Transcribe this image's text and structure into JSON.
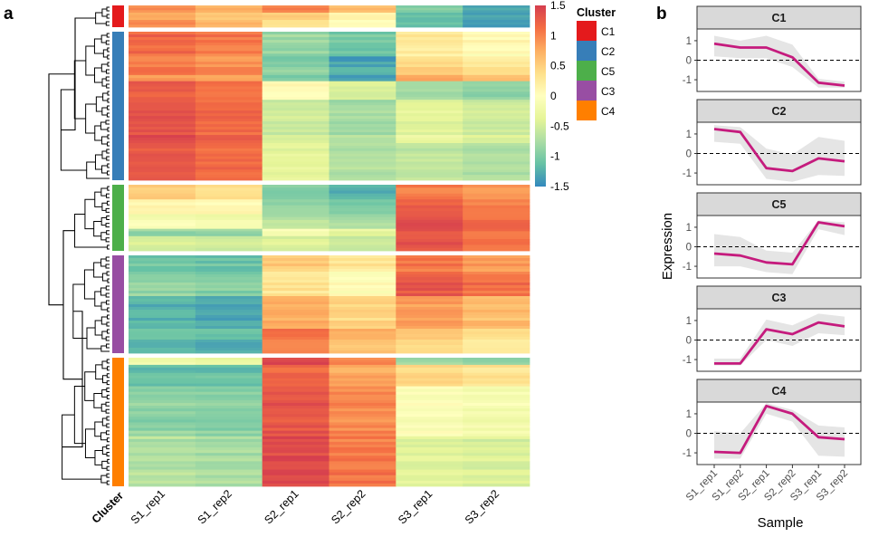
{
  "figure": {
    "panel_a_label": "a",
    "panel_b_label": "b"
  },
  "chart_data": [
    {
      "type": "heatmap",
      "panel": "a",
      "title": "",
      "columns": [
        "S1_rep1",
        "S1_rep2",
        "S2_rep1",
        "S2_rep2",
        "S3_rep1",
        "S3_rep2"
      ],
      "annotation_label": "Cluster",
      "colorbar": {
        "ticks": [
          1.5,
          1,
          0.5,
          0,
          -0.5,
          -1,
          -1.5
        ],
        "tick_labels": [
          "1.5",
          "1",
          "0.5",
          "0",
          "-0.5",
          "-1",
          "-1.5"
        ],
        "range": [
          -1.5,
          1.5
        ],
        "palette": [
          "#3288bd",
          "#66c2a5",
          "#abdda4",
          "#e6f598",
          "#ffffbf",
          "#fee08b",
          "#fdae61",
          "#f46d43",
          "#d53e4f"
        ]
      },
      "legend": {
        "title": "Cluster",
        "entries": [
          {
            "label": "C1",
            "color": "#e41a1c"
          },
          {
            "label": "C2",
            "color": "#377eb8"
          },
          {
            "label": "C5",
            "color": "#4daf4a"
          },
          {
            "label": "C3",
            "color": "#984ea3"
          },
          {
            "label": "C4",
            "color": "#ff7f00"
          }
        ],
        "placement": "right"
      },
      "row_blocks": [
        {
          "cluster": "C1",
          "rows": [
            {
              "weight": 1,
              "values": [
                0.9,
                0.7,
                1.0,
                0.6,
                -1.0,
                -1.3
              ]
            },
            {
              "weight": 1,
              "values": [
                0.8,
                0.6,
                0.6,
                0.2,
                -1.1,
                -1.25
              ]
            },
            {
              "weight": 1,
              "values": [
                1.0,
                0.75,
                0.4,
                0.1,
                -1.05,
                -1.3
              ]
            }
          ]
        },
        {
          "cluster": "C2",
          "rows": [
            {
              "weight": 4,
              "values": [
                1.15,
                1.05,
                -0.85,
                -1.05,
                0.25,
                0.05
              ]
            },
            {
              "weight": 3,
              "values": [
                1.05,
                0.95,
                -0.95,
                -1.3,
                0.45,
                0.3
              ]
            },
            {
              "weight": 1,
              "values": [
                0.85,
                0.75,
                -1.05,
                -1.4,
                0.8,
                0.6
              ]
            },
            {
              "weight": 3,
              "values": [
                1.3,
                1.15,
                0.1,
                -0.4,
                -0.75,
                -0.85
              ]
            },
            {
              "weight": 7,
              "values": [
                1.35,
                1.2,
                -0.5,
                -0.75,
                -0.35,
                -0.5
              ]
            },
            {
              "weight": 6,
              "values": [
                1.3,
                1.15,
                -0.35,
                -0.7,
                -0.6,
                -0.7
              ]
            }
          ]
        },
        {
          "cluster": "C5",
          "rows": [
            {
              "weight": 2,
              "values": [
                0.5,
                0.35,
                -1.0,
                -1.25,
                1.0,
                0.85
              ]
            },
            {
              "weight": 2,
              "values": [
                0.15,
                0.1,
                -0.85,
                -1.0,
                1.25,
                1.05
              ]
            },
            {
              "weight": 2,
              "values": [
                -0.15,
                -0.2,
                -0.7,
                -0.8,
                1.35,
                1.1
              ]
            },
            {
              "weight": 1,
              "values": [
                -0.85,
                -0.85,
                -0.1,
                -0.3,
                1.35,
                1.1
              ]
            },
            {
              "weight": 2,
              "values": [
                -0.45,
                -0.5,
                -0.45,
                -0.55,
                1.3,
                1.1
              ]
            }
          ]
        },
        {
          "cluster": "C3",
          "rows": [
            {
              "weight": 2,
              "values": [
                -1.05,
                -1.1,
                0.55,
                0.3,
                1.1,
                0.85
              ]
            },
            {
              "weight": 3,
              "values": [
                -0.9,
                -0.95,
                0.3,
                0.0,
                1.3,
                1.1
              ]
            },
            {
              "weight": 4,
              "values": [
                -1.2,
                -1.3,
                0.75,
                0.45,
                0.85,
                0.65
              ]
            },
            {
              "weight": 3,
              "values": [
                -1.15,
                -1.2,
                1.05,
                0.65,
                0.5,
                0.3
              ]
            }
          ]
        },
        {
          "cluster": "C4",
          "rows": [
            {
              "weight": 1,
              "values": [
                -0.2,
                -0.3,
                1.45,
                1.0,
                -0.8,
                -0.9
              ]
            },
            {
              "weight": 3,
              "values": [
                -1.15,
                -1.15,
                1.15,
                0.75,
                0.4,
                0.3
              ]
            },
            {
              "weight": 7,
              "values": [
                -0.9,
                -0.95,
                1.3,
                0.95,
                -0.05,
                -0.15
              ]
            },
            {
              "weight": 7,
              "values": [
                -0.7,
                -0.75,
                1.4,
                1.05,
                -0.4,
                -0.45
              ]
            }
          ]
        }
      ]
    },
    {
      "type": "line",
      "panel": "b",
      "facets": [
        "C1",
        "C2",
        "C5",
        "C3",
        "C4"
      ],
      "x": [
        "S1_rep1",
        "S1_rep2",
        "S2_rep1",
        "S2_rep2",
        "S3_rep1",
        "S3_rep2"
      ],
      "xlabel": "Sample",
      "ylabel": "Expression",
      "ylim": [
        -1.6,
        1.6
      ],
      "yticks": [
        -1,
        0,
        1
      ],
      "ytick_labels": [
        "-1",
        "0",
        "1"
      ],
      "reference_line": 0,
      "line_color": "#c51b7d",
      "band_color": "#e5e5e5",
      "series": [
        {
          "name": "C1",
          "values": [
            0.85,
            0.65,
            0.65,
            0.15,
            -1.15,
            -1.3
          ],
          "upper": [
            1.25,
            1.0,
            1.25,
            0.8,
            -0.95,
            -1.1
          ],
          "lower": [
            0.2,
            0.1,
            0.1,
            -0.35,
            -1.4,
            -1.4
          ]
        },
        {
          "name": "C2",
          "values": [
            1.25,
            1.1,
            -0.75,
            -0.9,
            -0.25,
            -0.4
          ],
          "upper": [
            1.45,
            1.35,
            0.25,
            -0.05,
            0.85,
            0.65
          ],
          "lower": [
            0.6,
            0.5,
            -1.3,
            -1.45,
            -1.1,
            -1.15
          ]
        },
        {
          "name": "C5",
          "values": [
            -0.35,
            -0.45,
            -0.8,
            -0.9,
            1.25,
            1.05
          ],
          "upper": [
            0.65,
            0.5,
            -0.2,
            -0.3,
            1.35,
            1.25
          ],
          "lower": [
            -1.0,
            -1.0,
            -1.3,
            -1.4,
            0.9,
            0.6
          ]
        },
        {
          "name": "C3",
          "values": [
            -1.2,
            -1.2,
            0.55,
            0.3,
            0.9,
            0.7
          ],
          "upper": [
            -0.95,
            -0.95,
            1.05,
            0.75,
            1.35,
            1.2
          ],
          "lower": [
            -1.3,
            -1.3,
            0.0,
            -0.3,
            0.35,
            0.25
          ]
        },
        {
          "name": "C4",
          "values": [
            -0.95,
            -1.0,
            1.4,
            1.0,
            -0.2,
            -0.3
          ],
          "upper": [
            0.1,
            0.0,
            1.55,
            1.2,
            0.4,
            0.3
          ],
          "lower": [
            -1.3,
            -1.3,
            1.0,
            0.6,
            -1.15,
            -1.2
          ]
        }
      ]
    }
  ]
}
